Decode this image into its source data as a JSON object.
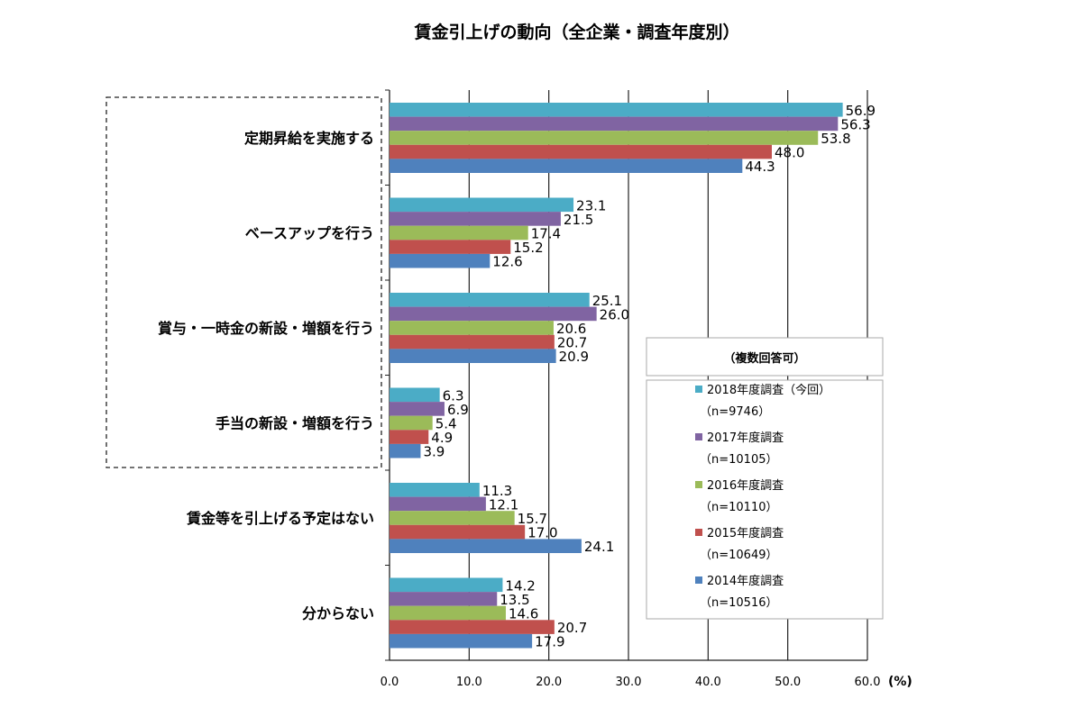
{
  "chart_data": {
    "type": "bar",
    "orientation": "horizontal",
    "title": "賃金引上げの動向（全企業・調査年度別）",
    "categories": [
      "定期昇給を実施する",
      "ベースアップを行う",
      "賞与・一時金の新設・増額を行う",
      "手当の新設・増額を行う",
      "賃金等を引上げる予定はない",
      "分からない"
    ],
    "series": [
      {
        "name": "2018年度調査（今回）",
        "n": "（n=9746）",
        "color": "#4bacc6",
        "values": [
          56.9,
          23.1,
          25.1,
          6.3,
          11.3,
          14.2
        ]
      },
      {
        "name": "2017年度調査",
        "n": "（n=10105）",
        "color": "#8064a2",
        "values": [
          56.3,
          21.5,
          26.0,
          6.9,
          12.1,
          13.5
        ]
      },
      {
        "name": "2016年度調査",
        "n": "（n=10110）",
        "color": "#9bbb59",
        "values": [
          53.8,
          17.4,
          20.6,
          5.4,
          15.7,
          14.6
        ]
      },
      {
        "name": "2015年度調査",
        "n": "（n=10649）",
        "color": "#c0504d",
        "values": [
          48.0,
          15.2,
          20.7,
          4.9,
          17.0,
          20.7
        ]
      },
      {
        "name": "2014年度調査",
        "n": "（n=10516）",
        "color": "#4f81bd",
        "values": [
          44.3,
          12.6,
          20.9,
          3.9,
          24.1,
          17.9
        ]
      }
    ],
    "xlim": [
      0,
      60
    ],
    "xticks": [
      "0.0",
      "10.0",
      "20.0",
      "30.0",
      "40.0",
      "50.0",
      "60.0"
    ],
    "xunit": "(%)",
    "legend_note": "（複数回答可）",
    "legend_position": "bottom-right",
    "grid": true
  }
}
